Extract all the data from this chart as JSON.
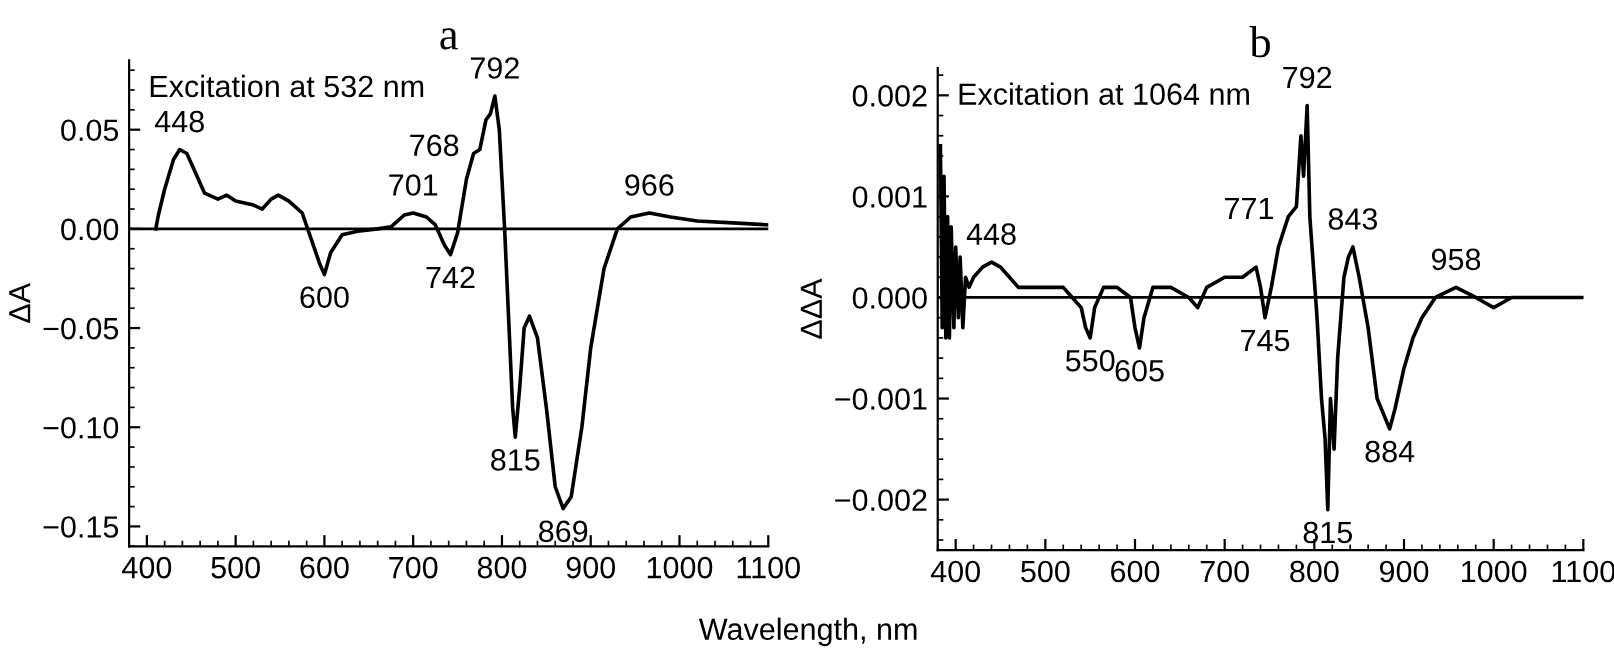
{
  "chart_data": [
    {
      "type": "line",
      "title": "a",
      "ylabel": "ΔA",
      "annotations": [
        "Excitation at 532 nm",
        {
          "text": "448",
          "x": 437,
          "y": 0.04
        },
        {
          "text": "600",
          "x": 600,
          "y": -0.023
        },
        {
          "text": "701",
          "x": 700,
          "y": 0.008
        },
        {
          "text": "742",
          "x": 742,
          "y": -0.013
        },
        {
          "text": "768",
          "x": 768,
          "y": 0.038
        },
        {
          "text": "792",
          "x": 792,
          "y": 0.067
        },
        {
          "text": "815",
          "x": 815,
          "y": -0.105
        },
        {
          "text": "869",
          "x": 869,
          "y": -0.141
        },
        {
          "text": "966",
          "x": 966,
          "y": 0.008
        }
      ],
      "series": [
        {
          "color": "#000000",
          "x": [
            410,
            413,
            420,
            430,
            437,
            445,
            455,
            465,
            480,
            490,
            500,
            520,
            530,
            540,
            548,
            560,
            575,
            585,
            595,
            600,
            607,
            620,
            640,
            660,
            675,
            690,
            700,
            715,
            725,
            735,
            742,
            750,
            760,
            768,
            775,
            782,
            787,
            792,
            797,
            803,
            808,
            812,
            815,
            820,
            825,
            831,
            840,
            850,
            860,
            869,
            878,
            890,
            900,
            915,
            930,
            945,
            966,
            990,
            1020,
            1060,
            1100
          ],
          "values": [
            0.0,
            0.007,
            0.02,
            0.035,
            0.04,
            0.038,
            0.028,
            0.018,
            0.015,
            0.017,
            0.014,
            0.012,
            0.01,
            0.015,
            0.017,
            0.014,
            0.008,
            -0.005,
            -0.018,
            -0.023,
            -0.012,
            -0.003,
            -0.001,
            0.0,
            0.001,
            0.007,
            0.008,
            0.006,
            0.002,
            -0.008,
            -0.013,
            -0.002,
            0.025,
            0.038,
            0.04,
            0.055,
            0.058,
            0.067,
            0.05,
            0.0,
            -0.05,
            -0.09,
            -0.105,
            -0.08,
            -0.05,
            -0.044,
            -0.055,
            -0.09,
            -0.13,
            -0.141,
            -0.135,
            -0.1,
            -0.06,
            -0.02,
            0.0,
            0.006,
            0.008,
            0.006,
            0.004,
            0.003,
            0.002
          ]
        }
      ],
      "xlim": [
        380,
        1100
      ],
      "xticks": [
        400,
        500,
        600,
        700,
        800,
        900,
        1000,
        1100
      ],
      "ylim": [
        -0.16,
        0.085
      ],
      "yticks": [
        {
          "value": -0.15,
          "label": "−0.15"
        },
        {
          "value": -0.1,
          "label": "−0.10"
        },
        {
          "value": -0.05,
          "label": "−0.05"
        },
        {
          "value": 0.0,
          "label": "0.00"
        },
        {
          "value": 0.05,
          "label": "0.05"
        }
      ],
      "ref_lines": [
        {
          "axis": "y",
          "value": 0,
          "color": "#000000"
        }
      ],
      "grid": false,
      "legend": false
    },
    {
      "type": "line",
      "title": "b",
      "ylabel": "ΔΔA",
      "xlabel": "Wavelength, nm",
      "annotations": [
        "Excitation at 1064 nm",
        {
          "text": "448",
          "x": 440,
          "y": 0.00035
        },
        {
          "text": "550",
          "x": 550,
          "y": -0.0004
        },
        {
          "text": "605",
          "x": 605,
          "y": -0.0005
        },
        {
          "text": "745",
          "x": 745,
          "y": -0.0002
        },
        {
          "text": "771",
          "x": 771,
          "y": 0.0008
        },
        {
          "text": "792",
          "x": 792,
          "y": 0.0019
        },
        {
          "text": "815",
          "x": 815,
          "y": -0.0021
        },
        {
          "text": "843",
          "x": 843,
          "y": 0.0005
        },
        {
          "text": "884",
          "x": 884,
          "y": -0.0013
        },
        {
          "text": "958",
          "x": 958,
          "y": 0.0001
        }
      ],
      "series": [
        {
          "color": "#000000",
          "x": [
            383,
            385,
            387,
            389,
            391,
            393,
            395,
            398,
            400,
            403,
            405,
            408,
            411,
            415,
            420,
            430,
            440,
            450,
            460,
            470,
            480,
            500,
            520,
            530,
            540,
            545,
            550,
            555,
            565,
            580,
            595,
            600,
            605,
            610,
            620,
            640,
            660,
            670,
            680,
            700,
            720,
            735,
            740,
            745,
            752,
            760,
            771,
            780,
            785,
            788,
            792,
            795,
            799,
            803,
            808,
            812,
            815,
            818,
            822,
            826,
            833,
            838,
            843,
            850,
            860,
            870,
            884,
            890,
            900,
            910,
            920,
            935,
            958,
            980,
            1000,
            1020,
            1050,
            1100
          ],
          "values": [
            0.0015,
            -0.0003,
            0.0012,
            -0.0004,
            0.0008,
            -0.0004,
            0.0007,
            -0.0003,
            0.0005,
            -0.0002,
            0.0004,
            -0.0003,
            0.0002,
            0.0001,
            0.0002,
            0.0003,
            0.00035,
            0.0003,
            0.0002,
            0.0001,
            0.0001,
            0.0001,
            0.0001,
            0.0,
            -0.0001,
            -0.0003,
            -0.0004,
            -0.0001,
            0.0001,
            0.0001,
            0.0,
            -0.0003,
            -0.0005,
            -0.0002,
            0.0001,
            0.0001,
            0.0,
            -0.0001,
            0.0001,
            0.0002,
            0.0002,
            0.0003,
            0.0001,
            -0.0002,
            0.0001,
            0.0005,
            0.0008,
            0.0009,
            0.0016,
            0.0012,
            0.0019,
            0.0008,
            0.0003,
            -0.0002,
            -0.001,
            -0.0014,
            -0.0021,
            -0.001,
            -0.0015,
            -0.0006,
            0.0002,
            0.0004,
            0.0005,
            0.0002,
            -0.0003,
            -0.001,
            -0.0013,
            -0.0011,
            -0.0007,
            -0.0004,
            -0.0002,
            0.0,
            0.0001,
            0.0,
            -0.0001,
            0.0,
            0.0,
            0.0
          ]
        }
      ],
      "xlim": [
        380,
        1100
      ],
      "xticks": [
        400,
        500,
        600,
        700,
        800,
        900,
        1000,
        1100
      ],
      "ylim": [
        -0.0025,
        0.00227
      ],
      "yticks": [
        {
          "value": -0.002,
          "label": "−0.002"
        },
        {
          "value": -0.001,
          "label": "−0.001"
        },
        {
          "value": 0.0,
          "label": "0.000"
        },
        {
          "value": 0.001,
          "label": "0.001"
        },
        {
          "value": 0.002,
          "label": "0.002"
        }
      ],
      "ref_lines": [
        {
          "axis": "y",
          "value": 0,
          "color": "#000000"
        }
      ],
      "grid": false,
      "legend": false
    }
  ]
}
